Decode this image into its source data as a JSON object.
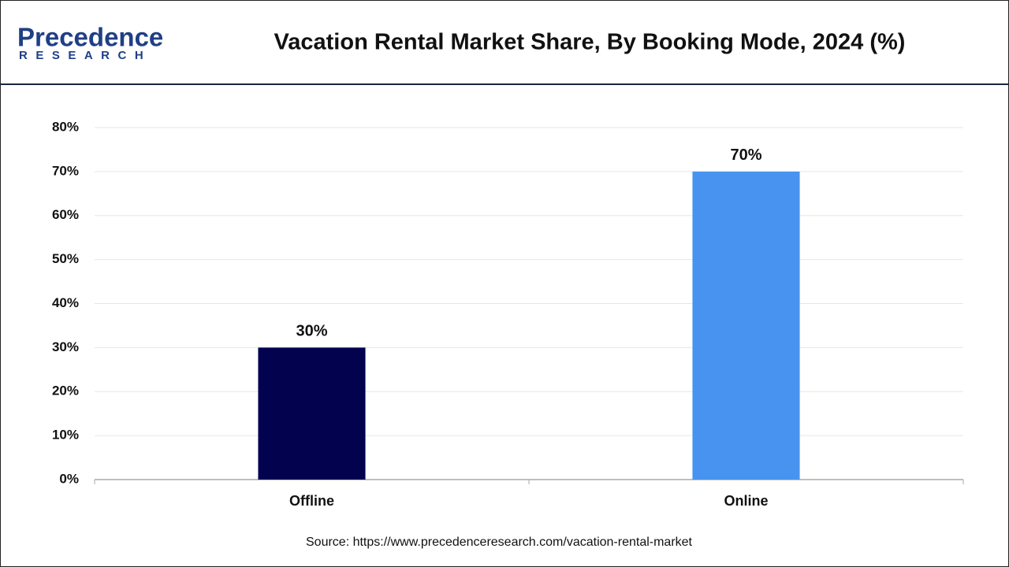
{
  "logo": {
    "name": "Precedence",
    "tagline": "RESEARCH"
  },
  "chart_data": {
    "type": "bar",
    "title": "Vacation Rental Market Share, By Booking Mode, 2024 (%)",
    "categories": [
      "Offline",
      "Online"
    ],
    "values": [
      30,
      70
    ],
    "value_labels": [
      "30%",
      "70%"
    ],
    "colors": [
      "#02024f",
      "#4793ef"
    ],
    "ylim": [
      0,
      80
    ],
    "yticks": [
      {
        "value": 0,
        "label": "0%"
      },
      {
        "value": 10,
        "label": "10%"
      },
      {
        "value": 20,
        "label": "20%"
      },
      {
        "value": 30,
        "label": "30%"
      },
      {
        "value": 40,
        "label": "40%"
      },
      {
        "value": 50,
        "label": "50%"
      },
      {
        "value": 60,
        "label": "60%"
      },
      {
        "value": 70,
        "label": "70%"
      },
      {
        "value": 80,
        "label": "80%"
      }
    ],
    "grid": true,
    "source": "Source: https://www.precedenceresearch.com/vacation-rental-market"
  }
}
